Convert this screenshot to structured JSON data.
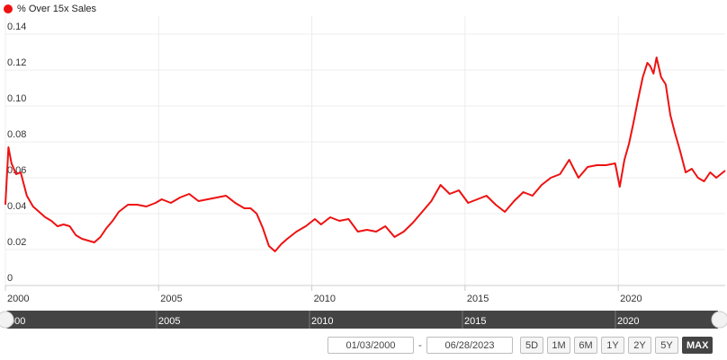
{
  "legend": {
    "label": "% Over 15x Sales",
    "color": "#ee1111"
  },
  "chart_data": {
    "type": "line",
    "title": "",
    "xlabel": "",
    "ylabel": "",
    "xlim": [
      2000.0,
      2023.49
    ],
    "ylim": [
      0,
      0.15
    ],
    "x_ticks": [
      "2000",
      "2005",
      "2010",
      "2015",
      "2020"
    ],
    "y_ticks": [
      "0",
      "0.02",
      "0.04",
      "0.06",
      "0.08",
      "0.10",
      "0.12",
      "0.14"
    ],
    "grid": true,
    "legend_position": "top-left",
    "series": [
      {
        "name": "% Over 15x Sales",
        "color": "#ee1111",
        "x": [
          2000.0,
          2000.1,
          2000.2,
          2000.35,
          2000.5,
          2000.7,
          2000.9,
          2001.1,
          2001.3,
          2001.5,
          2001.7,
          2001.9,
          2002.1,
          2002.3,
          2002.5,
          2002.7,
          2002.9,
          2003.1,
          2003.3,
          2003.5,
          2003.7,
          2004.0,
          2004.3,
          2004.6,
          2004.9,
          2005.1,
          2005.4,
          2005.7,
          2006.0,
          2006.3,
          2006.6,
          2006.9,
          2007.2,
          2007.5,
          2007.8,
          2008.0,
          2008.2,
          2008.4,
          2008.6,
          2008.8,
          2009.0,
          2009.2,
          2009.5,
          2009.8,
          2010.1,
          2010.3,
          2010.6,
          2010.9,
          2011.2,
          2011.5,
          2011.8,
          2012.1,
          2012.4,
          2012.7,
          2013.0,
          2013.3,
          2013.6,
          2013.9,
          2014.2,
          2014.5,
          2014.8,
          2015.1,
          2015.4,
          2015.7,
          2016.0,
          2016.3,
          2016.6,
          2016.9,
          2017.2,
          2017.5,
          2017.8,
          2018.1,
          2018.4,
          2018.7,
          2019.0,
          2019.3,
          2019.6,
          2019.9,
          2020.05,
          2020.2,
          2020.35,
          2020.5,
          2020.65,
          2020.8,
          2020.95,
          2021.05,
          2021.15,
          2021.25,
          2021.4,
          2021.55,
          2021.7,
          2021.85,
          2022.0,
          2022.2,
          2022.4,
          2022.6,
          2022.8,
          2023.0,
          2023.2,
          2023.49
        ],
        "y": [
          0.045,
          0.077,
          0.068,
          0.062,
          0.063,
          0.05,
          0.044,
          0.041,
          0.038,
          0.036,
          0.033,
          0.034,
          0.033,
          0.028,
          0.026,
          0.025,
          0.024,
          0.027,
          0.032,
          0.036,
          0.041,
          0.045,
          0.045,
          0.044,
          0.046,
          0.048,
          0.046,
          0.049,
          0.051,
          0.047,
          0.048,
          0.049,
          0.05,
          0.046,
          0.043,
          0.043,
          0.04,
          0.032,
          0.022,
          0.019,
          0.023,
          0.026,
          0.03,
          0.033,
          0.037,
          0.034,
          0.038,
          0.036,
          0.037,
          0.03,
          0.031,
          0.03,
          0.033,
          0.027,
          0.03,
          0.035,
          0.041,
          0.047,
          0.056,
          0.051,
          0.053,
          0.046,
          0.048,
          0.05,
          0.045,
          0.041,
          0.047,
          0.052,
          0.05,
          0.056,
          0.06,
          0.062,
          0.07,
          0.06,
          0.066,
          0.067,
          0.067,
          0.068,
          0.055,
          0.07,
          0.079,
          0.091,
          0.104,
          0.116,
          0.124,
          0.122,
          0.118,
          0.127,
          0.116,
          0.112,
          0.095,
          0.085,
          0.076,
          0.063,
          0.065,
          0.06,
          0.058,
          0.063,
          0.06,
          0.064
        ]
      }
    ]
  },
  "navigator": {
    "labels": [
      "000",
      "2005",
      "2010",
      "2015",
      "2020"
    ]
  },
  "range_selector": {
    "from_date": "01/03/2000",
    "separator": "-",
    "to_date": "06/28/2023",
    "buttons": [
      "5D",
      "1M",
      "6M",
      "1Y",
      "2Y",
      "5Y",
      "MAX"
    ],
    "active": "MAX"
  }
}
